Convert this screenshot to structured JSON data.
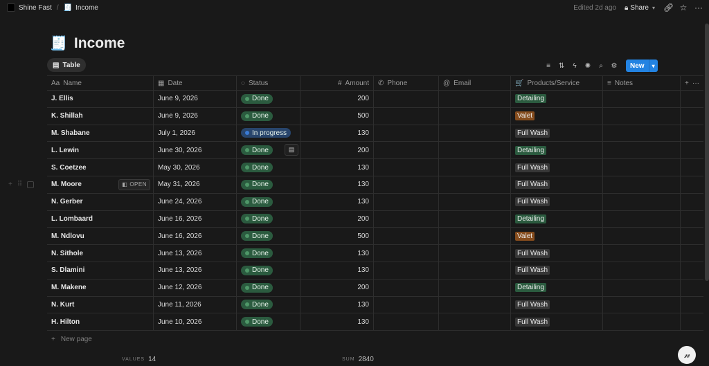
{
  "breadcrumb": {
    "workspace": "Shine Fast",
    "separator": "/",
    "page_icon": "receipt-icon",
    "page": "Income"
  },
  "topbar": {
    "edited": "Edited 2d ago",
    "share_label": "Share",
    "icons": [
      "lock-icon",
      "chevron-down-icon",
      "link-icon",
      "star-icon",
      "more-icon"
    ]
  },
  "page": {
    "icon": "receipt-icon",
    "title": "Income"
  },
  "view": {
    "tab_label": "Table",
    "tab_icon": "table-icon"
  },
  "toolbar": {
    "icons": [
      "filter-icon",
      "sort-icon",
      "automation-icon",
      "ai-icon",
      "search-icon",
      "settings-icon"
    ],
    "new_label": "New"
  },
  "columns": [
    {
      "key": "name",
      "label": "Name",
      "icon_text": "Aa"
    },
    {
      "key": "date",
      "label": "Date",
      "icon_text": "▦"
    },
    {
      "key": "status",
      "label": "Status",
      "icon_text": "◌"
    },
    {
      "key": "amount",
      "label": "Amount",
      "icon_text": "#"
    },
    {
      "key": "phone",
      "label": "Phone",
      "icon_text": "✆"
    },
    {
      "key": "email",
      "label": "Email",
      "icon_text": "@"
    },
    {
      "key": "products",
      "label": "Products/Service",
      "icon_text": "🛒"
    },
    {
      "key": "notes",
      "label": "Notes",
      "icon_text": "≡"
    }
  ],
  "rows": [
    {
      "name": "J. Ellis",
      "date": "June 9, 2026",
      "status": "Done",
      "amount": "200",
      "product": "Detailing"
    },
    {
      "name": "K. Shillah",
      "date": "June 9, 2026",
      "status": "Done",
      "amount": "500",
      "product": "Valet"
    },
    {
      "name": "M. Shabane",
      "date": "July 1, 2026",
      "status": "In progress",
      "amount": "130",
      "product": "Full Wash"
    },
    {
      "name": "L. Lewin",
      "date": "June 30, 2026",
      "status": "Done",
      "amount": "200",
      "product": "Detailing"
    },
    {
      "name": "S. Coetzee",
      "date": "May 30, 2026",
      "status": "Done",
      "amount": "130",
      "product": "Full Wash"
    },
    {
      "name": "M. Moore",
      "date": "May 31, 2026",
      "status": "Done",
      "amount": "130",
      "product": "Full Wash"
    },
    {
      "name": "N. Gerber",
      "date": "June 24, 2026",
      "status": "Done",
      "amount": "130",
      "product": "Full Wash"
    },
    {
      "name": "L. Lombaard",
      "date": "June 16, 2026",
      "status": "Done",
      "amount": "200",
      "product": "Detailing"
    },
    {
      "name": "M. Ndlovu",
      "date": "June 16, 2026",
      "status": "Done",
      "amount": "500",
      "product": "Valet"
    },
    {
      "name": "N. Sithole",
      "date": "June 13, 2026",
      "status": "Done",
      "amount": "130",
      "product": "Full Wash"
    },
    {
      "name": "S. Dlamini",
      "date": "June 13, 2026",
      "status": "Done",
      "amount": "130",
      "product": "Full Wash"
    },
    {
      "name": "M. Makene",
      "date": "June 12, 2026",
      "status": "Done",
      "amount": "200",
      "product": "Detailing"
    },
    {
      "name": "N. Kurt",
      "date": "June 11, 2026",
      "status": "Done",
      "amount": "130",
      "product": "Full Wash"
    },
    {
      "name": "H. Hilton",
      "date": "June 10, 2026",
      "status": "Done",
      "amount": "130",
      "product": "Full Wash"
    }
  ],
  "hover": {
    "open_label": "OPEN"
  },
  "new_page_label": "New page",
  "footer": {
    "values_key": "VALUES",
    "values_val": "14",
    "sum_key": "SUM",
    "sum_val": "2840"
  },
  "colors": {
    "done_bg": "#2b5b3f",
    "done_dot": "#4f9768",
    "progress_bg": "#28456c",
    "progress_dot": "#3a7bd5",
    "detailing_bg": "#2b5b3f",
    "valet_bg": "#854c1d",
    "fullwash_bg": "#373737",
    "accent": "#2383e2"
  }
}
